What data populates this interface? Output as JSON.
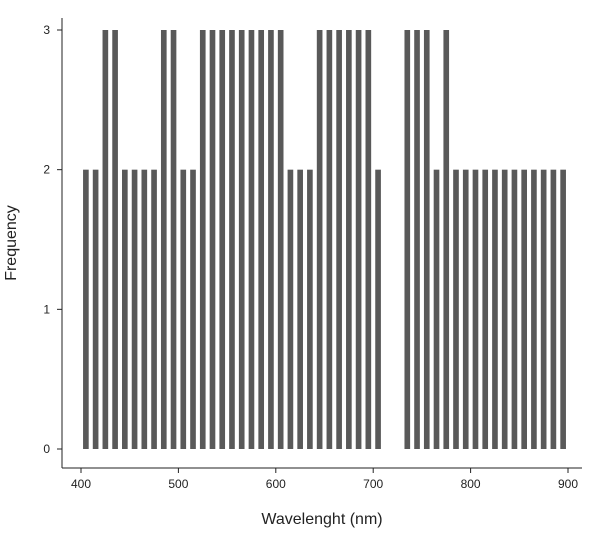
{
  "chart_data": {
    "type": "bar",
    "title": "",
    "xlabel": "Wavelenght (nm)",
    "ylabel": "Frequency",
    "x": [
      405,
      415,
      425,
      435,
      445,
      455,
      465,
      475,
      485,
      495,
      505,
      515,
      525,
      535,
      545,
      555,
      565,
      575,
      585,
      595,
      605,
      615,
      625,
      635,
      645,
      655,
      665,
      675,
      685,
      695,
      705,
      715,
      725,
      735,
      745,
      755,
      765,
      775,
      785,
      795,
      805,
      815,
      825,
      835,
      845,
      855,
      865,
      875,
      885,
      895
    ],
    "values": [
      2,
      2,
      3,
      3,
      2,
      2,
      2,
      2,
      3,
      3,
      2,
      2,
      3,
      3,
      3,
      3,
      3,
      3,
      3,
      3,
      3,
      2,
      2,
      2,
      3,
      3,
      3,
      3,
      3,
      3,
      2,
      0,
      0,
      3,
      3,
      3,
      2,
      3,
      2,
      2,
      2,
      2,
      2,
      2,
      2,
      2,
      2,
      2,
      2,
      2
    ],
    "bin_width": 10,
    "xlim": [
      400,
      900
    ],
    "ylim": [
      0,
      3
    ],
    "xticks": [
      "400",
      "500",
      "600",
      "700",
      "800",
      "900"
    ],
    "yticks": [
      "0",
      "1",
      "2",
      "3"
    ],
    "bar_color": "#595959",
    "grid": false,
    "legend": "none"
  }
}
